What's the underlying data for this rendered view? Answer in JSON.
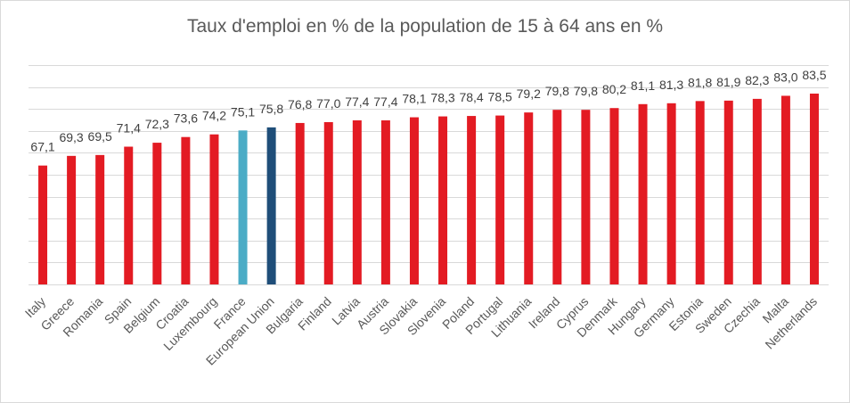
{
  "chart_data": {
    "type": "bar",
    "title": "Taux d'emploi en % de la population de 15 à 64 ans en %",
    "xlabel": "",
    "ylabel": "",
    "ylim": [
      40,
      90
    ],
    "grid": true,
    "legend": "none",
    "categories": [
      "Italy",
      "Greece",
      "Romania",
      "Spain",
      "Belgium",
      "Croatia",
      "Luxembourg",
      "France",
      "European Union",
      "Bulgaria",
      "Finland",
      "Latvia",
      "Austria",
      "Slovakia",
      "Slovenia",
      "Poland",
      "Portugal",
      "Lithuania",
      "Ireland",
      "Cyprus",
      "Denmark",
      "Hungary",
      "Germany",
      "Estonia",
      "Sweden",
      "Czechia",
      "Malta",
      "Netherlands"
    ],
    "values": [
      67.1,
      69.3,
      69.5,
      71.4,
      72.3,
      73.6,
      74.2,
      75.1,
      75.8,
      76.8,
      77.0,
      77.4,
      77.4,
      78.1,
      78.3,
      78.4,
      78.5,
      79.2,
      79.8,
      79.8,
      80.2,
      81.1,
      81.3,
      81.8,
      81.9,
      82.3,
      83.0,
      83.5
    ],
    "value_labels": [
      "67,1",
      "69,3",
      "69,5",
      "71,4",
      "72,3",
      "73,6",
      "74,2",
      "75,1",
      "75,8",
      "76,8",
      "77,0",
      "77,4",
      "77,4",
      "78,1",
      "78,3",
      "78,4",
      "78,5",
      "79,2",
      "79,8",
      "79,8",
      "80,2",
      "81,1",
      "81,3",
      "81,8",
      "81,9",
      "82,3",
      "83,0",
      "83,5"
    ],
    "colors": {
      "default": "#e31b23",
      "France": "#4bacc6",
      "European Union": "#1f4e79"
    },
    "gridline_color": "#d9d9d9"
  }
}
